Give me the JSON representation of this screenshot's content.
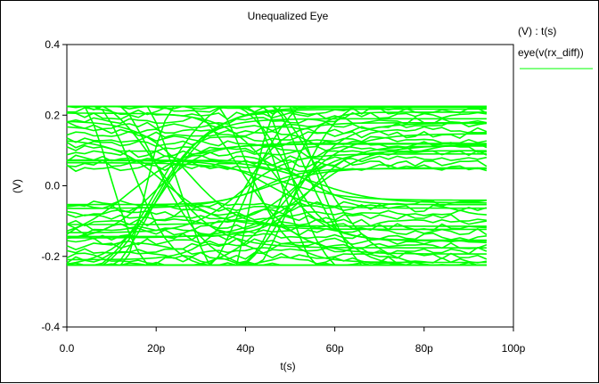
{
  "window": {
    "title": "Unequalized Eye"
  },
  "legend": {
    "header": "(V) : t(s)",
    "entries": [
      {
        "label": "eye(v(rx_diff))",
        "color": "#00ff00"
      }
    ]
  },
  "chart_data": {
    "type": "line",
    "title": "Unequalized Eye",
    "xlabel": "t(s)",
    "ylabel": "(V)",
    "xlim": [
      0,
      100
    ],
    "ylim": [
      -0.4,
      0.4
    ],
    "x_unit": "p",
    "x_ticks": [
      "0.0",
      "20p",
      "40p",
      "60p",
      "80p",
      "100p"
    ],
    "y_ticks": [
      "0.4",
      "0.2",
      "0.0",
      "-0.2",
      "-0.4"
    ],
    "grid": false,
    "legend_position": "right",
    "series": [
      {
        "name": "eye(v(rx_diff))",
        "color": "#00ff00",
        "x_range": [
          0,
          94
        ],
        "envelope_max": 0.225,
        "envelope_min": -0.225,
        "eye_openings": [
          {
            "center_x": 23,
            "upper": 0.08,
            "lower": -0.1
          },
          {
            "center_x": 65,
            "upper": 0.05,
            "lower": -0.03
          }
        ]
      }
    ]
  }
}
